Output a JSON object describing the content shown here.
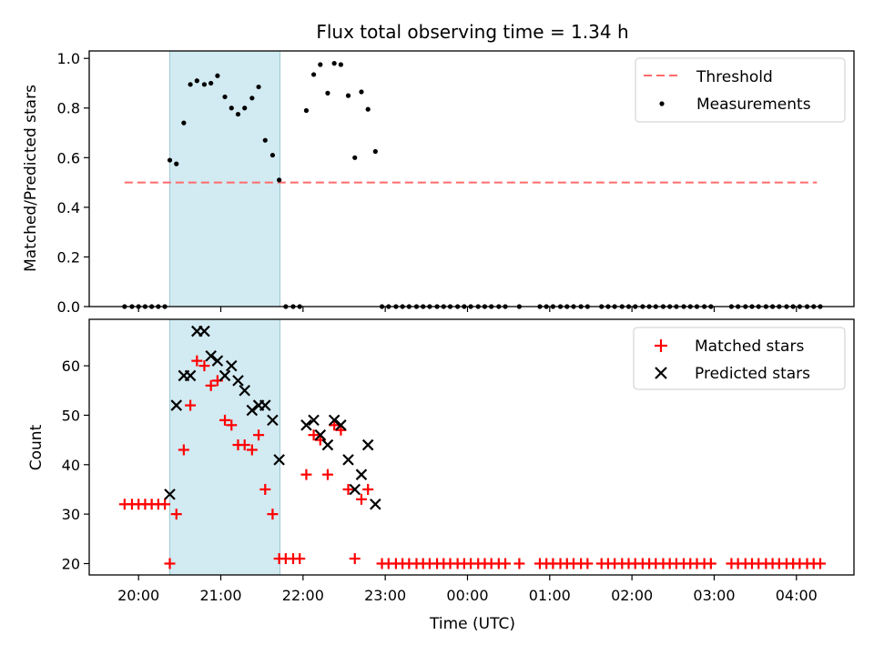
{
  "chart_data": [
    {
      "type": "scatter",
      "title": "Flux total observing time = 1.34 h",
      "ylabel": "Matched/Predicted stars",
      "xlabel": "",
      "x_unit": "hours (UTC, continuing past midnight)",
      "xlim": [
        19.4,
        28.7
      ],
      "ylim": [
        0.0,
        1.03
      ],
      "yticks": [
        "0.0",
        "0.2",
        "0.4",
        "0.6",
        "0.8",
        "1.0"
      ],
      "yticks_values": [
        0.0,
        0.2,
        0.4,
        0.6,
        0.8,
        1.0
      ],
      "shaded_interval": [
        20.38,
        21.72
      ],
      "shaded_color": "#add8e6",
      "threshold": {
        "name": "Threshold",
        "value": 0.5,
        "x_range": [
          19.83,
          28.25
        ],
        "color": "#ff6b6b"
      },
      "series": [
        {
          "name": "Measurements",
          "color": "#000000",
          "points": [
            [
              19.83,
              0
            ],
            [
              19.92,
              0
            ],
            [
              20.0,
              0
            ],
            [
              20.08,
              0
            ],
            [
              20.16,
              0
            ],
            [
              20.24,
              0
            ],
            [
              20.32,
              0
            ],
            [
              20.38,
              0.59
            ],
            [
              20.46,
              0.575
            ],
            [
              20.55,
              0.74
            ],
            [
              20.63,
              0.895
            ],
            [
              20.71,
              0.91
            ],
            [
              20.8,
              0.895
            ],
            [
              20.88,
              0.9
            ],
            [
              20.96,
              0.93
            ],
            [
              21.05,
              0.845
            ],
            [
              21.13,
              0.8
            ],
            [
              21.21,
              0.775
            ],
            [
              21.29,
              0.8
            ],
            [
              21.38,
              0.84
            ],
            [
              21.46,
              0.885
            ],
            [
              21.54,
              0.67
            ],
            [
              21.63,
              0.61
            ],
            [
              21.71,
              0.51
            ],
            [
              21.79,
              0
            ],
            [
              21.88,
              0
            ],
            [
              21.96,
              0
            ],
            [
              22.04,
              0.79
            ],
            [
              22.13,
              0.935
            ],
            [
              22.21,
              0.975
            ],
            [
              22.3,
              0.86
            ],
            [
              22.38,
              0.98
            ],
            [
              22.46,
              0.975
            ],
            [
              22.55,
              0.85
            ],
            [
              22.63,
              0.6
            ],
            [
              22.71,
              0.865
            ],
            [
              22.79,
              0.795
            ],
            [
              22.88,
              0.625
            ],
            [
              22.96,
              0
            ],
            [
              23.04,
              0
            ],
            [
              23.13,
              0
            ],
            [
              23.21,
              0
            ],
            [
              23.29,
              0
            ],
            [
              23.38,
              0
            ],
            [
              23.46,
              0
            ],
            [
              23.54,
              0
            ],
            [
              23.63,
              0
            ],
            [
              23.71,
              0
            ],
            [
              23.79,
              0
            ],
            [
              23.88,
              0
            ],
            [
              23.96,
              0
            ],
            [
              24.04,
              0
            ],
            [
              24.13,
              0
            ],
            [
              24.21,
              0
            ],
            [
              24.29,
              0
            ],
            [
              24.38,
              0
            ],
            [
              24.46,
              0
            ],
            [
              24.63,
              0
            ],
            [
              24.88,
              0
            ],
            [
              24.96,
              0
            ],
            [
              25.04,
              0
            ],
            [
              25.13,
              0
            ],
            [
              25.21,
              0
            ],
            [
              25.29,
              0
            ],
            [
              25.38,
              0
            ],
            [
              25.46,
              0
            ],
            [
              25.63,
              0
            ],
            [
              25.71,
              0
            ],
            [
              25.79,
              0
            ],
            [
              25.88,
              0
            ],
            [
              25.96,
              0
            ],
            [
              26.04,
              0
            ],
            [
              26.13,
              0
            ],
            [
              26.21,
              0
            ],
            [
              26.29,
              0
            ],
            [
              26.38,
              0
            ],
            [
              26.46,
              0
            ],
            [
              26.54,
              0
            ],
            [
              26.63,
              0
            ],
            [
              26.71,
              0
            ],
            [
              26.79,
              0
            ],
            [
              26.88,
              0
            ],
            [
              26.96,
              0
            ],
            [
              27.21,
              0
            ],
            [
              27.29,
              0
            ],
            [
              27.38,
              0
            ],
            [
              27.46,
              0
            ],
            [
              27.54,
              0
            ],
            [
              27.63,
              0
            ],
            [
              27.71,
              0
            ],
            [
              27.79,
              0
            ],
            [
              27.88,
              0
            ],
            [
              27.96,
              0
            ],
            [
              28.04,
              0
            ],
            [
              28.13,
              0
            ],
            [
              28.21,
              0
            ],
            [
              28.29,
              0
            ]
          ]
        }
      ],
      "legend": {
        "placement": "upper right",
        "entries": [
          "Threshold",
          "Measurements"
        ]
      }
    },
    {
      "type": "scatter",
      "title": "",
      "ylabel": "Count",
      "xlabel": "Time (UTC)",
      "x_unit": "hours (UTC, continuing past midnight)",
      "xlim": [
        19.4,
        28.7
      ],
      "ylim": [
        17.7,
        69.4
      ],
      "yticks": [
        "20",
        "30",
        "40",
        "50",
        "60"
      ],
      "yticks_values": [
        20,
        30,
        40,
        50,
        60
      ],
      "xticks": [
        "20:00",
        "21:00",
        "22:00",
        "23:00",
        "00:00",
        "01:00",
        "02:00",
        "03:00",
        "04:00"
      ],
      "xticks_values": [
        20,
        21,
        22,
        23,
        24,
        25,
        26,
        27,
        28
      ],
      "shaded_interval": [
        20.38,
        21.72
      ],
      "shaded_color": "#add8e6",
      "series": [
        {
          "name": "Matched stars",
          "marker": "plus",
          "color": "#ff0000",
          "points": [
            [
              19.83,
              32
            ],
            [
              19.92,
              32
            ],
            [
              20.0,
              32
            ],
            [
              20.08,
              32
            ],
            [
              20.16,
              32
            ],
            [
              20.24,
              32
            ],
            [
              20.32,
              32
            ],
            [
              20.38,
              20
            ],
            [
              20.46,
              30
            ],
            [
              20.55,
              43
            ],
            [
              20.63,
              52
            ],
            [
              20.71,
              61
            ],
            [
              20.8,
              60
            ],
            [
              20.88,
              56
            ],
            [
              20.96,
              57
            ],
            [
              21.05,
              49
            ],
            [
              21.13,
              48
            ],
            [
              21.21,
              44
            ],
            [
              21.29,
              44
            ],
            [
              21.38,
              43
            ],
            [
              21.46,
              46
            ],
            [
              21.54,
              35
            ],
            [
              21.63,
              30
            ],
            [
              21.71,
              21
            ],
            [
              21.79,
              21
            ],
            [
              21.88,
              21
            ],
            [
              21.96,
              21
            ],
            [
              22.04,
              38
            ],
            [
              22.13,
              46
            ],
            [
              22.21,
              45
            ],
            [
              22.3,
              38
            ],
            [
              22.38,
              48
            ],
            [
              22.46,
              47
            ],
            [
              22.55,
              35
            ],
            [
              22.63,
              21
            ],
            [
              22.71,
              33
            ],
            [
              22.79,
              35
            ],
            [
              22.96,
              20
            ],
            [
              23.04,
              20
            ],
            [
              23.13,
              20
            ],
            [
              23.21,
              20
            ],
            [
              23.29,
              20
            ],
            [
              23.38,
              20
            ],
            [
              23.46,
              20
            ],
            [
              23.54,
              20
            ],
            [
              23.63,
              20
            ],
            [
              23.71,
              20
            ],
            [
              23.79,
              20
            ],
            [
              23.88,
              20
            ],
            [
              23.96,
              20
            ],
            [
              24.04,
              20
            ],
            [
              24.13,
              20
            ],
            [
              24.21,
              20
            ],
            [
              24.29,
              20
            ],
            [
              24.38,
              20
            ],
            [
              24.46,
              20
            ],
            [
              24.63,
              20
            ],
            [
              24.88,
              20
            ],
            [
              24.96,
              20
            ],
            [
              25.04,
              20
            ],
            [
              25.13,
              20
            ],
            [
              25.21,
              20
            ],
            [
              25.29,
              20
            ],
            [
              25.38,
              20
            ],
            [
              25.46,
              20
            ],
            [
              25.63,
              20
            ],
            [
              25.71,
              20
            ],
            [
              25.79,
              20
            ],
            [
              25.88,
              20
            ],
            [
              25.96,
              20
            ],
            [
              26.04,
              20
            ],
            [
              26.13,
              20
            ],
            [
              26.21,
              20
            ],
            [
              26.29,
              20
            ],
            [
              26.38,
              20
            ],
            [
              26.46,
              20
            ],
            [
              26.54,
              20
            ],
            [
              26.63,
              20
            ],
            [
              26.71,
              20
            ],
            [
              26.79,
              20
            ],
            [
              26.88,
              20
            ],
            [
              26.96,
              20
            ],
            [
              27.21,
              20
            ],
            [
              27.29,
              20
            ],
            [
              27.38,
              20
            ],
            [
              27.46,
              20
            ],
            [
              27.54,
              20
            ],
            [
              27.63,
              20
            ],
            [
              27.71,
              20
            ],
            [
              27.79,
              20
            ],
            [
              27.88,
              20
            ],
            [
              27.96,
              20
            ],
            [
              28.04,
              20
            ],
            [
              28.13,
              20
            ],
            [
              28.21,
              20
            ],
            [
              28.29,
              20
            ]
          ]
        },
        {
          "name": "Predicted stars",
          "marker": "x",
          "color": "#000000",
          "points": [
            [
              20.38,
              34
            ],
            [
              20.46,
              52
            ],
            [
              20.55,
              58
            ],
            [
              20.63,
              58
            ],
            [
              20.71,
              67
            ],
            [
              20.8,
              67
            ],
            [
              20.88,
              62
            ],
            [
              20.96,
              61
            ],
            [
              21.05,
              58
            ],
            [
              21.13,
              60
            ],
            [
              21.21,
              57
            ],
            [
              21.29,
              55
            ],
            [
              21.38,
              51
            ],
            [
              21.46,
              52
            ],
            [
              21.54,
              52
            ],
            [
              21.63,
              49
            ],
            [
              21.71,
              41
            ],
            [
              22.04,
              48
            ],
            [
              22.13,
              49
            ],
            [
              22.21,
              46
            ],
            [
              22.3,
              44
            ],
            [
              22.38,
              49
            ],
            [
              22.46,
              48
            ],
            [
              22.55,
              41
            ],
            [
              22.63,
              35
            ],
            [
              22.71,
              38
            ],
            [
              22.79,
              44
            ],
            [
              22.88,
              32
            ]
          ]
        }
      ],
      "legend": {
        "placement": "upper right",
        "entries": [
          "Matched stars",
          "Predicted stars"
        ]
      }
    }
  ]
}
